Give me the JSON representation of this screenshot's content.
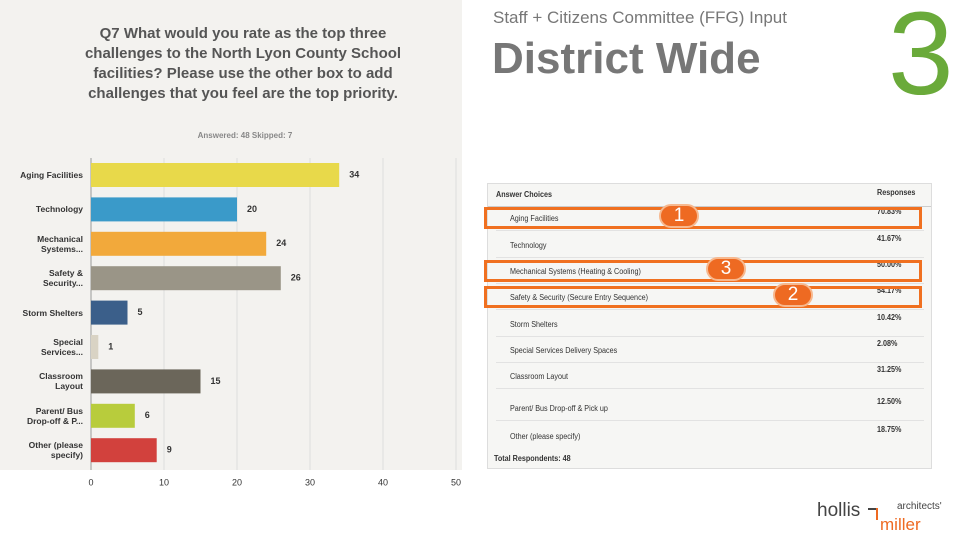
{
  "header": {
    "subtitle": "Staff + Citizens Committee (FFG) Input",
    "title": "District Wide",
    "number": "3"
  },
  "chart_data": {
    "type": "bar",
    "orientation": "horizontal",
    "title": "Q7 What would you rate as the top three challenges to the North Lyon County School facilities? Please use the other box to add challenges that you feel are the top priority.",
    "subtitle": "Answered: 48    Skipped: 7",
    "categories": [
      "Aging Facilities",
      "Technology",
      "Mechanical Systems...",
      "Safety & Security...",
      "Storm Shelters",
      "Special Services...",
      "Classroom Layout",
      "Parent/ Bus Drop-off & P...",
      "Other (please specify)"
    ],
    "values": [
      34,
      20,
      24,
      26,
      5,
      1,
      15,
      6,
      9
    ],
    "colors": [
      "#e8d94a",
      "#3a9ac9",
      "#f2a93b",
      "#9a9587",
      "#3b5f8a",
      "#d9d3c4",
      "#6b665a",
      "#b8cc3c",
      "#d2413d"
    ],
    "xlim": [
      0,
      50
    ],
    "xticks": [
      0,
      10,
      20,
      30,
      40,
      50
    ],
    "grid": true
  },
  "table": {
    "headers": [
      "Answer Choices",
      "Responses"
    ],
    "rows": [
      {
        "choice": "Aging Facilities",
        "response": "70.83%",
        "rank": "1"
      },
      {
        "choice": "Technology",
        "response": "41.67%"
      },
      {
        "choice": "Mechanical Systems (Heating & Cooling)",
        "response": "50.00%",
        "rank": "3"
      },
      {
        "choice": "Safety & Security (Secure Entry Sequence)",
        "response": "54.17%",
        "rank": "2"
      },
      {
        "choice": "Storm Shelters",
        "response": "10.42%"
      },
      {
        "choice": "Special Services Delivery Spaces",
        "response": "2.08%"
      },
      {
        "choice": "Classroom Layout",
        "response": "31.25%"
      },
      {
        "choice": "Parent/ Bus Drop-off & Pick up",
        "response": "12.50%"
      },
      {
        "choice": "Other (please specify)",
        "response": "18.75%"
      }
    ],
    "footer": "Total Respondents: 48"
  },
  "logo": {
    "name": "hollis",
    "name2": "miller",
    "tag": "architects'"
  }
}
